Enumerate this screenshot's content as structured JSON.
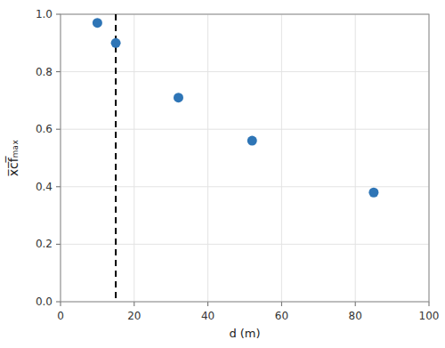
{
  "chart_data": {
    "type": "scatter",
    "xlabel": "d (m)",
    "ylabel": "x̅c̅f̅ₘₐₓ",
    "x": [
      10,
      15,
      32,
      52,
      85
    ],
    "values": [
      0.97,
      0.9,
      0.71,
      0.56,
      0.38
    ],
    "color": "#2E75B6",
    "xlim": [
      0,
      100
    ],
    "ylim": [
      0.0,
      1.0
    ],
    "xticks": [
      0,
      20,
      40,
      60,
      80,
      100
    ],
    "yticks": [
      {
        "value": 0.0,
        "label": "0.0"
      },
      0.2,
      0.4,
      0.6,
      0.8,
      {
        "value": 1.0,
        "label": "1.0"
      }
    ],
    "grid": true,
    "reference_lines": [
      {
        "x": 15,
        "color": "black",
        "line_style": "dashed"
      }
    ]
  }
}
